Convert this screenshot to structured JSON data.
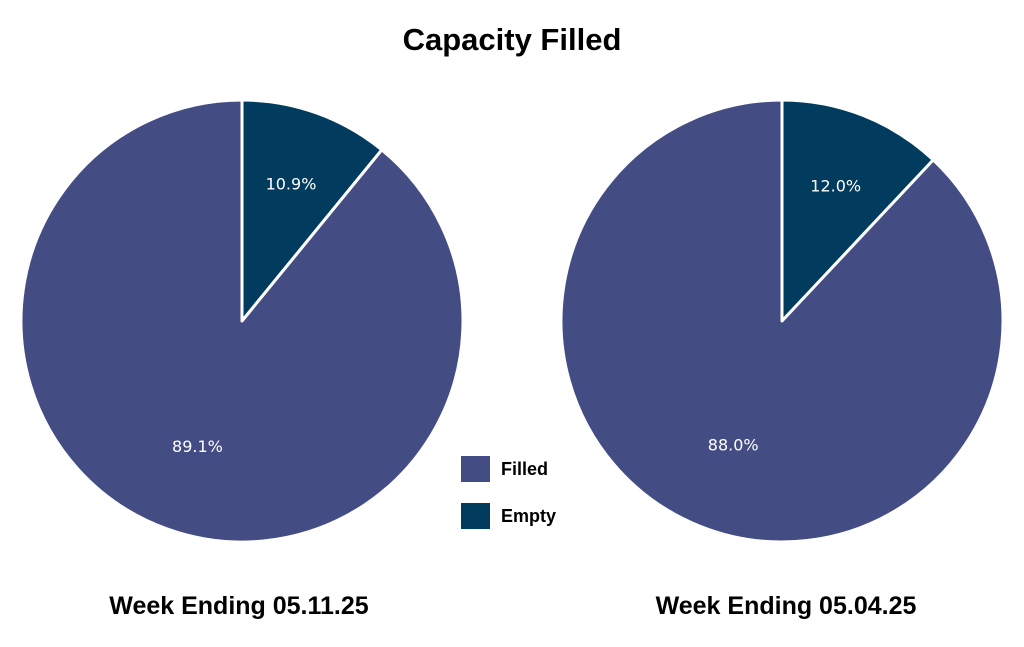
{
  "title": "Capacity Filled",
  "legend": [
    {
      "label": "Filled",
      "color": "#444c84"
    },
    {
      "label": "Empty",
      "color": "#013b5d"
    }
  ],
  "chart_data": [
    {
      "type": "pie",
      "title": "Week Ending 05.11.25",
      "labels": [
        "Empty",
        "Filled"
      ],
      "values": [
        10.9,
        89.1
      ],
      "value_labels": [
        "10.9%",
        "89.1%"
      ],
      "colors": [
        "#013b5d",
        "#444c84"
      ],
      "start": "12 o'clock",
      "direction": "clockwise"
    },
    {
      "type": "pie",
      "title": "Week Ending 05.04.25",
      "labels": [
        "Empty",
        "Filled"
      ],
      "values": [
        12.0,
        88.0
      ],
      "value_labels": [
        "12.0%",
        "88.0%"
      ],
      "colors": [
        "#013b5d",
        "#444c84"
      ],
      "start": "12 o'clock",
      "direction": "clockwise"
    }
  ]
}
